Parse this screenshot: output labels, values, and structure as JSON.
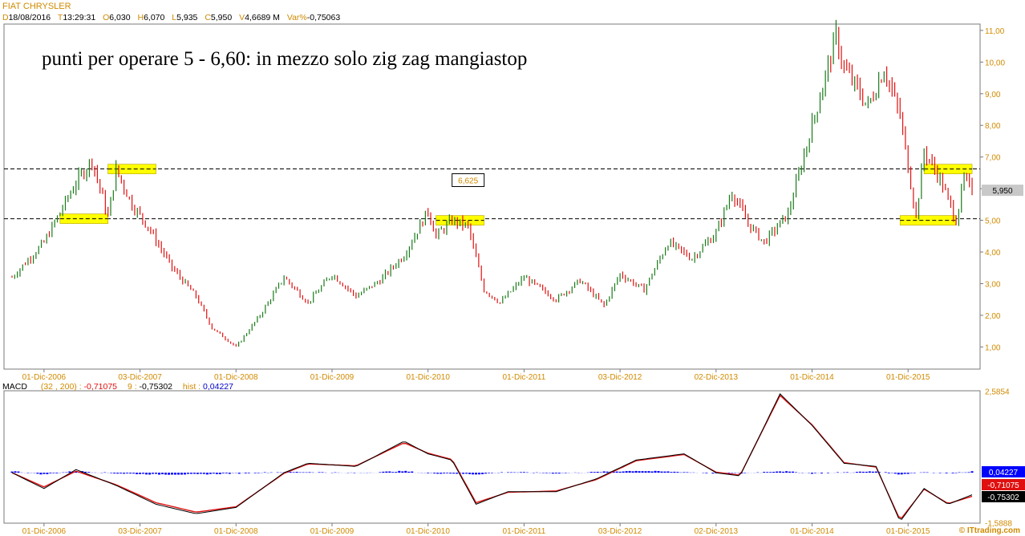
{
  "header": {
    "instrument": "FIAT CHRYSLER",
    "ohlc": [
      {
        "k": "D",
        "v": "18/08/2016"
      },
      {
        "k": "T",
        "v": "13:29:31"
      },
      {
        "k": "O",
        "v": "6,030"
      },
      {
        "k": "H",
        "v": "6,070"
      },
      {
        "k": "L",
        "v": "5,935"
      },
      {
        "k": "C",
        "v": "5,950"
      },
      {
        "k": "V",
        "v": "4,6689 M"
      },
      {
        "k": "Var%",
        "v": "-0,75063"
      }
    ]
  },
  "annotation": "punti per operare 5 - 6,60: in mezzo solo zig zag mangiastop",
  "watermark": "© ITtrading.com",
  "colors": {
    "up": "#1a7a1a",
    "down": "#e01010",
    "highlight": "#ffff00",
    "macd_line": "#000000",
    "signal_line": "#e01010",
    "hist": "#0000ff",
    "accent": "#d08a00"
  },
  "chart_data": [
    {
      "type": "line",
      "title": "FIAT CHRYSLER",
      "x_tick_labels": [
        "01-Dic-2006",
        "03-Dic-2007",
        "01-Dic-2008",
        "01-Dic-2009",
        "01-Dic-2010",
        "01-Dic-2011",
        "03-Dic-2012",
        "02-Dic-2013",
        "01-Dic-2014",
        "01-Dic-2015"
      ],
      "y_tick_labels": [
        "1,00",
        "2,00",
        "3,00",
        "4,00",
        "5,00",
        "6,00",
        "7,00",
        "8,00",
        "9,00",
        "10,00",
        "11,00"
      ],
      "ylim": [
        0.3,
        11.2
      ],
      "x": [
        "2006-08",
        "2006-12",
        "2007-04",
        "2007-06",
        "2007-08",
        "2007-09",
        "2007-11",
        "2008-01",
        "2008-04",
        "2008-07",
        "2008-09",
        "2008-12",
        "2009-03",
        "2009-06",
        "2009-09",
        "2009-12",
        "2010-03",
        "2010-06",
        "2010-09",
        "2010-12",
        "2011-01",
        "2011-03",
        "2011-05",
        "2011-07",
        "2011-09",
        "2011-12",
        "2012-04",
        "2012-07",
        "2012-10",
        "2012-12",
        "2013-03",
        "2013-06",
        "2013-09",
        "2013-12",
        "2014-02",
        "2014-04",
        "2014-06",
        "2014-09",
        "2014-12",
        "2015-03",
        "2015-04",
        "2015-07",
        "2015-09",
        "2015-11",
        "2016-01",
        "2016-02",
        "2016-04",
        "2016-06",
        "2016-07",
        "2016-08"
      ],
      "close": [
        3.2,
        4.3,
        6.2,
        6.9,
        5.1,
        6.6,
        5.5,
        4.8,
        3.5,
        2.6,
        1.6,
        1.0,
        2.0,
        3.2,
        2.4,
        3.3,
        2.6,
        3.1,
        3.9,
        5.3,
        4.5,
        5.0,
        4.8,
        2.8,
        2.4,
        3.2,
        2.5,
        3.1,
        2.3,
        3.3,
        2.8,
        4.3,
        3.8,
        4.6,
        5.9,
        4.9,
        4.3,
        5.2,
        8.0,
        10.8,
        9.8,
        8.6,
        9.8,
        8.3,
        5.1,
        7.2,
        6.3,
        5.0,
        6.3,
        5.95
      ]
    },
    {
      "type": "line",
      "title": "MACD",
      "params": "(32 , 200)",
      "macd_value": "-0,71075",
      "signal_period": "9",
      "signal_value": "-0,75302",
      "hist_label": "hist",
      "hist_value": "0,04227",
      "y_tick_labels": [
        "2,5854",
        "-1,5888"
      ],
      "ylim": [
        -1.6,
        2.6
      ],
      "x": [
        "2006-08",
        "2006-12",
        "2007-04",
        "2007-09",
        "2008-02",
        "2008-07",
        "2008-12",
        "2009-06",
        "2009-09",
        "2010-03",
        "2010-09",
        "2010-12",
        "2011-03",
        "2011-06",
        "2011-10",
        "2012-04",
        "2012-09",
        "2013-02",
        "2013-08",
        "2013-12",
        "2014-03",
        "2014-08",
        "2014-12",
        "2015-04",
        "2015-08",
        "2015-11",
        "2016-02",
        "2016-05",
        "2016-08"
      ],
      "macd": [
        0.0,
        -0.5,
        0.1,
        -0.4,
        -1.0,
        -1.3,
        -1.1,
        0.0,
        0.3,
        0.2,
        1.0,
        0.6,
        0.4,
        -1.0,
        -0.6,
        -0.6,
        -0.2,
        0.4,
        0.6,
        0.0,
        -0.1,
        2.5,
        1.5,
        0.3,
        0.2,
        -1.55,
        -0.5,
        -1.0,
        -0.7
      ],
      "signal": [
        0.0,
        -0.45,
        0.05,
        -0.38,
        -0.95,
        -1.25,
        -1.08,
        -0.02,
        0.28,
        0.22,
        0.95,
        0.62,
        0.42,
        -0.95,
        -0.62,
        -0.58,
        -0.22,
        0.38,
        0.58,
        0.02,
        -0.08,
        2.45,
        1.52,
        0.32,
        0.18,
        -1.5,
        -0.52,
        -0.98,
        -0.75
      ],
      "histogram": [
        0.05,
        -0.05,
        0.05,
        -0.02,
        -0.05,
        -0.05,
        -0.02,
        0.02,
        0.02,
        -0.01,
        0.05,
        -0.02,
        -0.02,
        -0.05,
        0.02,
        -0.02,
        0.02,
        0.06,
        0.02,
        -0.02,
        -0.02,
        0.05,
        -0.02,
        0.01,
        0.04,
        -0.05,
        0.02,
        -0.02,
        0.04
      ],
      "value_badges": [
        "0,04227",
        "-0,71075",
        "-0,75302"
      ]
    }
  ],
  "price_panel": {
    "levels": [
      {
        "label": "6,625",
        "value": 6.625
      },
      {
        "value": 5.05
      }
    ],
    "last_price_badge": "5,950",
    "zones": [
      {
        "x0": "2007-02",
        "x1": "2007-08",
        "level": 5.05
      },
      {
        "x0": "2007-08",
        "x1": "2008-02",
        "level": 6.62
      },
      {
        "x0": "2011-01",
        "x1": "2011-07",
        "level": 5.0
      },
      {
        "x0": "2015-11",
        "x1": "2016-06",
        "level": 5.0
      },
      {
        "x0": "2016-02",
        "x1": "2016-08",
        "level": 6.62
      }
    ]
  }
}
